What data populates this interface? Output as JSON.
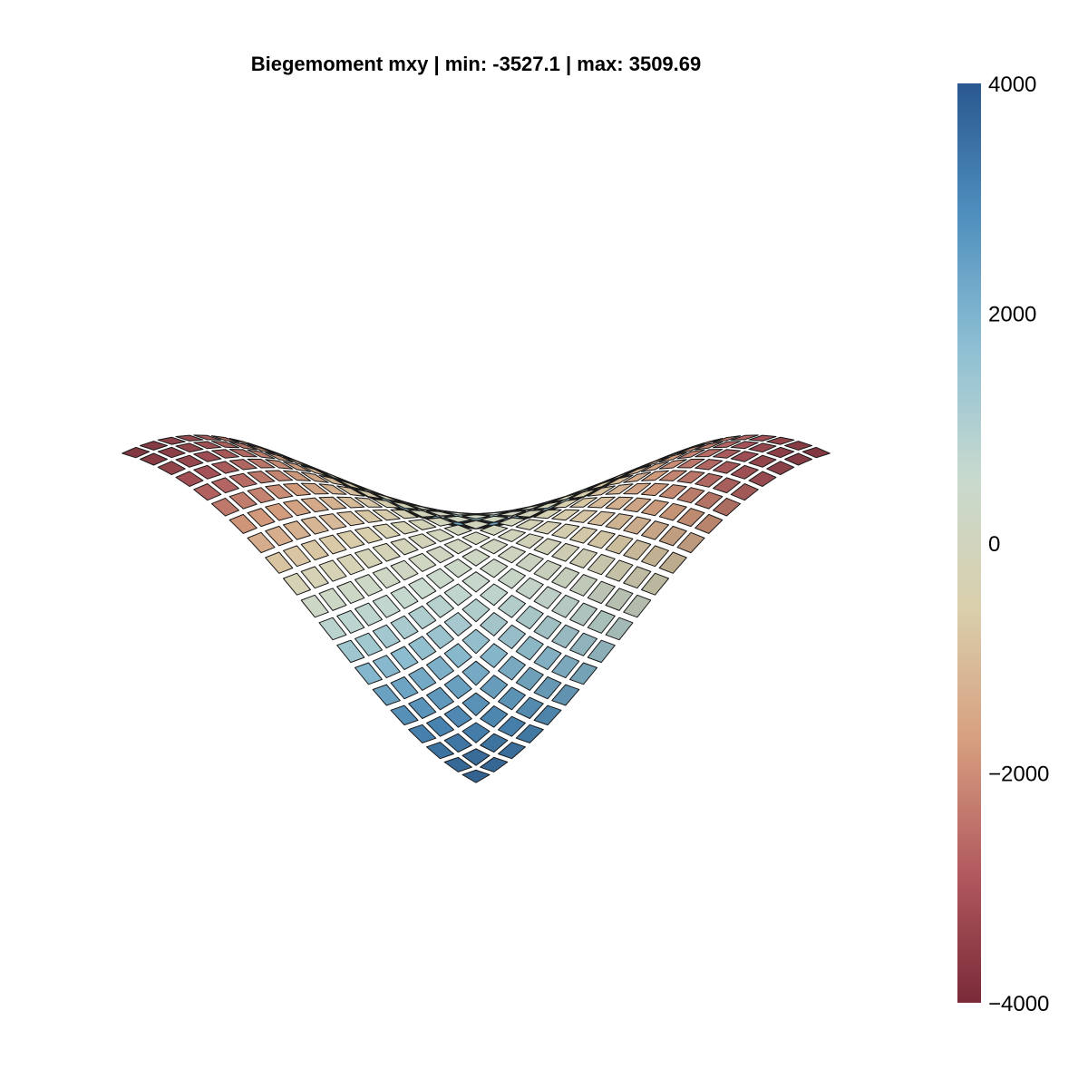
{
  "chart_data": {
    "type": "surface3d",
    "title": "Biegemoment mxy | min: -3527.1 | max: 3509.69",
    "quantity": "Biegemoment mxy",
    "min": -3527.1,
    "max": 3509.69,
    "grid": false,
    "colorbar": {
      "position": "right",
      "range": [
        -4000,
        4000
      ],
      "ticks": [
        4000,
        2000,
        0,
        -2000,
        -4000
      ],
      "tick_labels": [
        "4000",
        "2000",
        "0",
        "−2000",
        "−4000"
      ],
      "colormap": [
        "#7a2a38",
        "#b25a5f",
        "#d79f7f",
        "#dacfac",
        "#c8dacf",
        "#8dbfd3",
        "#4f8fbe",
        "#2a5890"
      ]
    },
    "surface": {
      "description_formula": "mxy proportional to sin(x)*sin(y) pattern, positive at two side corners, negative at front and back corners",
      "n_cells_per_side": 20
    }
  }
}
